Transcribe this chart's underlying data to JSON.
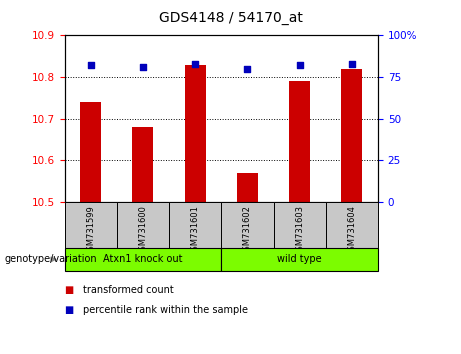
{
  "title": "GDS4148 / 54170_at",
  "samples": [
    "GSM731599",
    "GSM731600",
    "GSM731601",
    "GSM731602",
    "GSM731603",
    "GSM731604"
  ],
  "transformed_count": [
    10.74,
    10.68,
    10.83,
    10.57,
    10.79,
    10.82
  ],
  "percentile_rank": [
    82,
    81,
    83,
    80,
    82,
    83
  ],
  "ylim_left": [
    10.5,
    10.9
  ],
  "ylim_right": [
    0,
    100
  ],
  "yticks_left": [
    10.5,
    10.6,
    10.7,
    10.8,
    10.9
  ],
  "yticks_right": [
    0,
    25,
    50,
    75,
    100
  ],
  "ytick_right_labels": [
    "0",
    "25",
    "50",
    "75",
    "100%"
  ],
  "bar_color": "#CC0000",
  "dot_color": "#0000BB",
  "bar_width": 0.4,
  "group1_label": "Atxn1 knock out",
  "group2_label": "wild type",
  "group_color": "#7CFC00",
  "sample_box_color": "#C8C8C8",
  "genotype_label": "genotype/variation",
  "legend_entries": [
    "transformed count",
    "percentile rank within the sample"
  ],
  "legend_colors": [
    "#CC0000",
    "#0000BB"
  ],
  "title_fontsize": 10,
  "tick_fontsize": 7.5,
  "sample_fontsize": 6,
  "legend_fontsize": 7,
  "genotype_fontsize": 7
}
